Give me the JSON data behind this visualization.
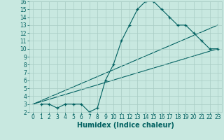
{
  "title": "",
  "xlabel": "Humidex (Indice chaleur)",
  "bg_color": "#c8e8e0",
  "grid_color": "#a8ccc4",
  "line_color": "#006060",
  "xlim": [
    -0.5,
    23.5
  ],
  "ylim": [
    2,
    16
  ],
  "xticks": [
    0,
    1,
    2,
    3,
    4,
    5,
    6,
    7,
    8,
    9,
    10,
    11,
    12,
    13,
    14,
    15,
    16,
    17,
    18,
    19,
    20,
    21,
    22,
    23
  ],
  "yticks": [
    2,
    3,
    4,
    5,
    6,
    7,
    8,
    9,
    10,
    11,
    12,
    13,
    14,
    15,
    16
  ],
  "line1_x": [
    1,
    2,
    3,
    4,
    5,
    6,
    7,
    8,
    9,
    10,
    11,
    12,
    13,
    14,
    15,
    16,
    17,
    18,
    19,
    20,
    21,
    22,
    23
  ],
  "line1_y": [
    3,
    3,
    2.5,
    3,
    3,
    3,
    2,
    2.5,
    6,
    8,
    11,
    13,
    15,
    16,
    16,
    15,
    14,
    13,
    13,
    12,
    11,
    10,
    10
  ],
  "line2_x": [
    0,
    23
  ],
  "line2_y": [
    3,
    13
  ],
  "line3_x": [
    0,
    23
  ],
  "line3_y": [
    3,
    10
  ],
  "font_size": 5.5
}
